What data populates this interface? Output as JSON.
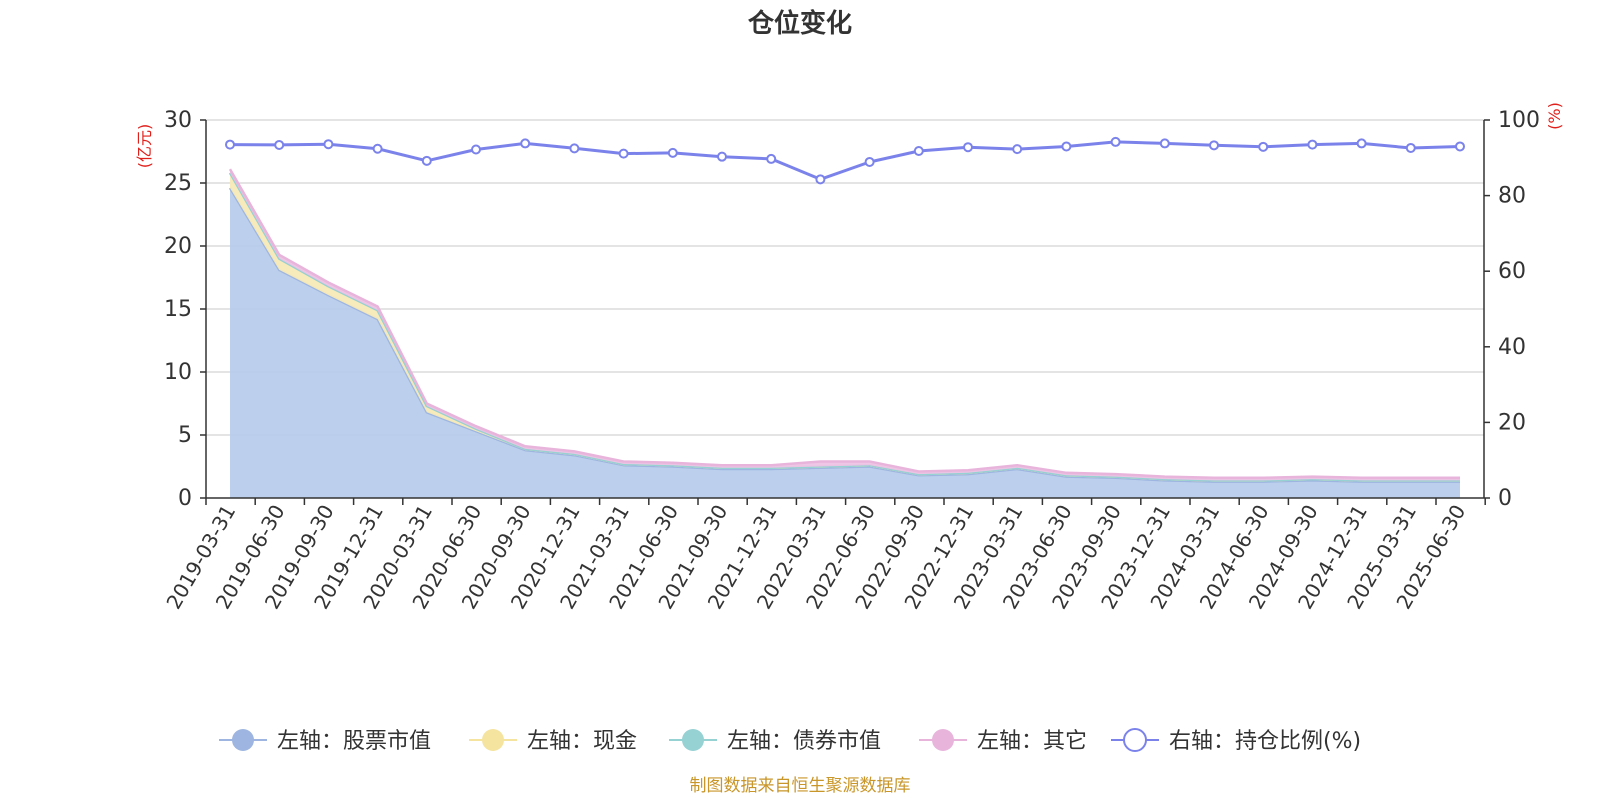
{
  "chart_data": {
    "type": "area",
    "title": "仓位变化",
    "source_note": "制图数据来自恒生聚源数据库",
    "left_axis": {
      "unit_label": "(亿元)",
      "ylim": [
        0,
        30
      ],
      "ticks": [
        0,
        5,
        10,
        15,
        20,
        25,
        30
      ]
    },
    "right_axis": {
      "unit_label": "(%)",
      "ylim": [
        0,
        100
      ],
      "ticks": [
        0,
        20,
        40,
        60,
        80,
        100
      ]
    },
    "grid": true,
    "legend_position": "bottom",
    "categories": [
      "2019-03-31",
      "2019-06-30",
      "2019-09-30",
      "2019-12-31",
      "2020-03-31",
      "2020-06-30",
      "2020-09-30",
      "2020-12-31",
      "2021-03-31",
      "2021-06-30",
      "2021-09-30",
      "2021-12-31",
      "2022-03-31",
      "2022-06-30",
      "2022-09-30",
      "2022-12-31",
      "2023-03-31",
      "2023-06-30",
      "2023-09-30",
      "2023-12-31",
      "2024-03-31",
      "2024-06-30",
      "2024-09-30",
      "2024-12-31",
      "2025-03-31",
      "2025-06-30"
    ],
    "series": [
      {
        "name": "左轴：股票市值",
        "axis": "left",
        "stack": true,
        "color": "#9db5e0",
        "fill": "#b8cdec",
        "values": [
          24.6,
          18.1,
          16.1,
          14.2,
          6.8,
          5.3,
          3.8,
          3.4,
          2.6,
          2.5,
          2.3,
          2.3,
          2.4,
          2.5,
          1.8,
          1.9,
          2.3,
          1.7,
          1.6,
          1.4,
          1.3,
          1.3,
          1.4,
          1.3,
          1.3,
          1.3
        ]
      },
      {
        "name": "左轴：现金",
        "axis": "left",
        "stack": true,
        "color": "#f5e4a0",
        "fill": "#f7eab8",
        "values": [
          1.2,
          0.9,
          0.7,
          0.7,
          0.5,
          0.2,
          0.1,
          0.1,
          0.1,
          0.1,
          0.1,
          0.1,
          0.1,
          0.1,
          0.1,
          0.1,
          0.1,
          0.1,
          0.1,
          0.1,
          0.1,
          0.1,
          0.1,
          0.1,
          0.1,
          0.1
        ]
      },
      {
        "name": "左轴：债券市值",
        "axis": "left",
        "stack": true,
        "color": "#96d1d4",
        "fill": "#a9dadd",
        "values": [
          0,
          0,
          0,
          0,
          0,
          0,
          0,
          0,
          0,
          0,
          0,
          0,
          0,
          0,
          0,
          0,
          0,
          0,
          0,
          0,
          0,
          0,
          0,
          0,
          0,
          0
        ]
      },
      {
        "name": "左轴：其它",
        "axis": "left",
        "stack": true,
        "color": "#e8b4dc",
        "fill": "#eec3e4",
        "values": [
          0.3,
          0.3,
          0.3,
          0.3,
          0.2,
          0.2,
          0.2,
          0.2,
          0.2,
          0.2,
          0.2,
          0.2,
          0.4,
          0.3,
          0.2,
          0.2,
          0.2,
          0.2,
          0.2,
          0.2,
          0.2,
          0.2,
          0.2,
          0.2,
          0.2,
          0.2
        ]
      },
      {
        "name": "右轴：持仓比例(%)",
        "axis": "right",
        "stack": false,
        "color": "#7b83eb",
        "values": [
          93.5,
          93.4,
          93.6,
          92.4,
          89.2,
          92.2,
          93.8,
          92.5,
          91.1,
          91.3,
          90.3,
          89.7,
          84.3,
          88.9,
          91.8,
          92.8,
          92.3,
          93.0,
          94.2,
          93.8,
          93.3,
          92.9,
          93.5,
          93.8,
          92.6,
          93.0
        ]
      }
    ]
  }
}
